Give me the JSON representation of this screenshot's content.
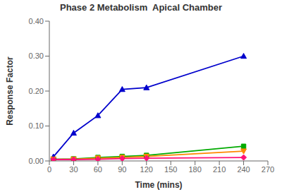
{
  "chart_data": {
    "type": "line",
    "title": "Phase 2 Metabolism  Apical Chamber",
    "xlabel": "Time (mins)",
    "ylabel": "Response Factor",
    "x": [
      5,
      30,
      60,
      90,
      120,
      240
    ],
    "series": [
      {
        "color": "#0000CC",
        "marker": "triangle-up",
        "values": [
          0.012,
          0.08,
          0.13,
          0.205,
          0.21,
          0.3
        ]
      },
      {
        "color": "#00AA00",
        "marker": "square",
        "values": [
          0.005,
          0.006,
          0.01,
          0.013,
          0.016,
          0.042
        ]
      },
      {
        "color": "#FF8800",
        "marker": "triangle-down",
        "values": [
          0.005,
          0.005,
          0.008,
          0.01,
          0.013,
          0.028
        ]
      },
      {
        "color": "#FF1177",
        "marker": "diamond",
        "values": [
          0.004,
          0.004,
          0.005,
          0.007,
          0.008,
          0.01
        ]
      }
    ],
    "xlim": [
      0,
      270
    ],
    "ylim": [
      0.0,
      0.4
    ],
    "xticks": [
      0,
      30,
      60,
      90,
      120,
      150,
      180,
      210,
      240,
      270
    ],
    "yticks": [
      {
        "value": 0.0,
        "label": "0.00"
      },
      {
        "value": 0.1,
        "label": "0.10"
      },
      {
        "value": 0.2,
        "label": "0.20"
      },
      {
        "value": 0.3,
        "label": "0.30"
      },
      {
        "value": 0.4,
        "label": "0.40"
      }
    ],
    "grid": false
  }
}
